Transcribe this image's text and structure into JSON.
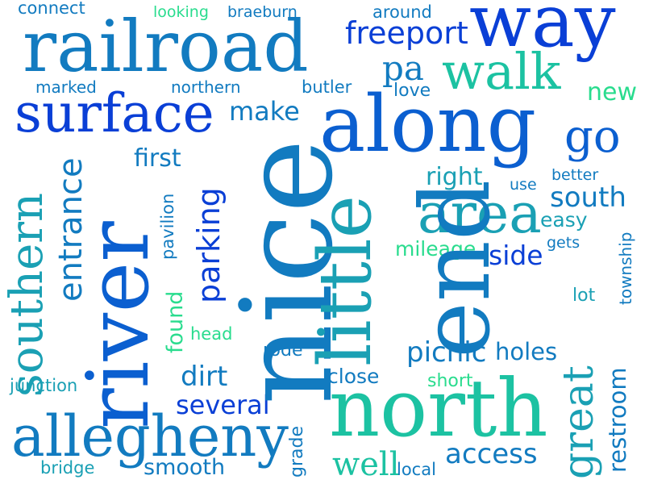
{
  "palette": {
    "blue": "#0a3fd6",
    "royal": "#0b5fd0",
    "azure": "#127bc0",
    "teal": "#1aa0b4",
    "aqua": "#1cc2a2",
    "mint": "#29dc8e"
  },
  "words": {
    "connect": "connect",
    "looking": "looking",
    "braeburn": "braeburn",
    "around": "around",
    "way": "way",
    "railroad": "railroad",
    "freeport": "freeport",
    "pa": "pa",
    "walk": "walk",
    "marked": "marked",
    "northern": "northern",
    "butler": "butler",
    "love": "love",
    "new": "new",
    "surface": "surface",
    "make": "make",
    "along": "along",
    "go": "go",
    "first": "first",
    "right": "right",
    "better": "better",
    "use": "use",
    "south": "south",
    "area": "area",
    "easy": "easy",
    "gets": "gets",
    "mileage": "mileage",
    "side": "side",
    "southern": "southern",
    "entrance": "entrance",
    "river": "river",
    "nice": "nice",
    "parking": "parking",
    "pavilion": "pavilion",
    "little": "little",
    "end": "end",
    "township": "township",
    "lot": "lot",
    "found": "found",
    "head": "head",
    "rode": "rode",
    "picnic": "picnic",
    "holes": "holes",
    "great": "great",
    "restroom": "restroom",
    "junction": "junction",
    "dirt": "dirt",
    "close": "close",
    "short": "short",
    "several": "several",
    "north": "north",
    "allegheny": "allegheny",
    "grade": "grade",
    "access": "access",
    "bridge": "bridge",
    "smooth": "smooth",
    "well": "well",
    "local": "local"
  }
}
